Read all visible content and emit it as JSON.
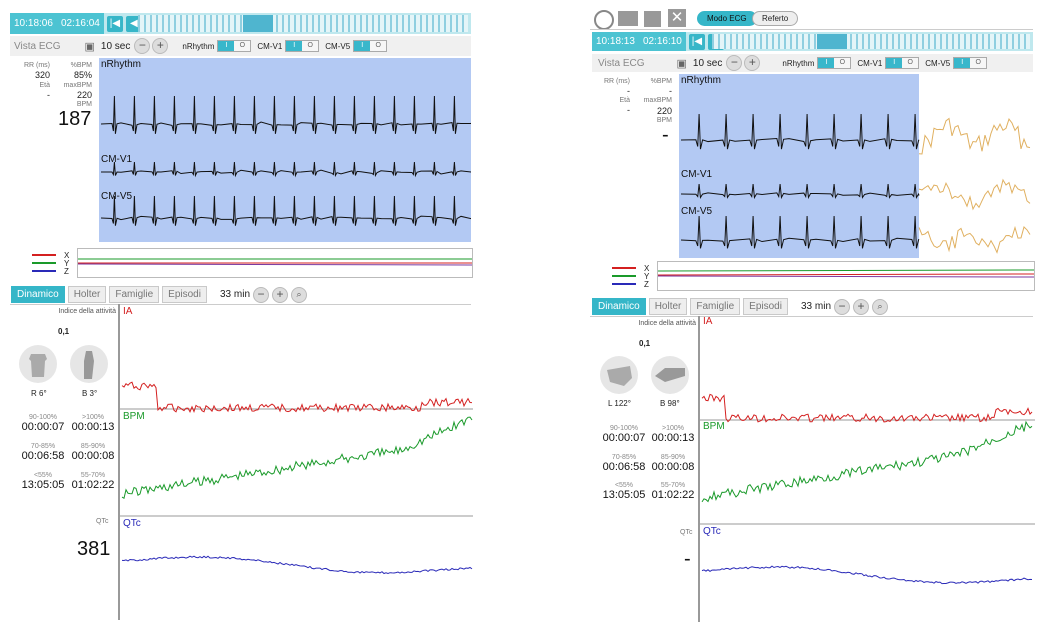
{
  "left": {
    "time1": "10:18:06",
    "time2": "02:16:04",
    "view_label": "Vista ECG",
    "zoom_label": "10 sec",
    "leads": [
      {
        "label": "nRhythm",
        "on": "I",
        "off": "O"
      },
      {
        "label": "CM-V1",
        "on": "I",
        "off": "O"
      },
      {
        "label": "CM-V5",
        "on": "I",
        "off": "O"
      }
    ],
    "rr_label": "RR (ms)",
    "rr_value": "320",
    "pbpm_label": "%BPM",
    "pbpm_value": "85%",
    "eta_label": "Età",
    "eta_value": "-",
    "maxbpm_label": "maxBPM",
    "maxbpm_value": "220",
    "bpm_label": "BPM",
    "bpm_big": "187",
    "trace_labels": [
      "nRhythm",
      "CM-V1",
      "CM-V5"
    ],
    "xyz": [
      "X",
      "Y",
      "Z"
    ],
    "tabs": [
      "Dinamico",
      "Holter",
      "Famiglie",
      "Episodi"
    ],
    "range_label": "33 min",
    "activity_label": "Indice della attività",
    "activity_value": "0,1",
    "pos1": "R 6°",
    "pos2": "B 3°",
    "ia_label": "IA",
    "bpm_graph_label": "BPM",
    "qtc_graph_label": "QTc",
    "qtc_small": "QTc",
    "qtc_big": "381",
    "stats": [
      {
        "label": "90-100%",
        "value": "00:00:07"
      },
      {
        "label": ">100%",
        "value": "00:00:13"
      },
      {
        "label": "70-85%",
        "value": "00:06:58"
      },
      {
        "label": "85-90%",
        "value": "00:00:08"
      },
      {
        "label": "<55%",
        "value": "13:05:05"
      },
      {
        "label": "55-70%",
        "value": "01:02:22"
      }
    ]
  },
  "right": {
    "toolbar_btn1": "Modo ECG",
    "toolbar_btn2": "Referto",
    "time1": "10:18:13",
    "time2": "02:16:10",
    "view_label": "Vista ECG",
    "zoom_label": "10 sec",
    "leads": [
      {
        "label": "nRhythm",
        "on": "I",
        "off": "O"
      },
      {
        "label": "CM-V1",
        "on": "I",
        "off": "O"
      },
      {
        "label": "CM-V5",
        "on": "I",
        "off": "O"
      }
    ],
    "rr_label": "RR (ms)",
    "rr_value": "-",
    "pbpm_label": "%BPM",
    "pbpm_value": "-",
    "eta_label": "Età",
    "eta_value": "-",
    "maxbpm_label": "maxBPM",
    "maxbpm_value": "220",
    "bpm_label": "BPM",
    "bpm_big": "-",
    "trace_labels": [
      "nRhythm",
      "CM-V1",
      "CM-V5"
    ],
    "xyz": [
      "X",
      "Y",
      "Z"
    ],
    "tabs": [
      "Dinamico",
      "Holter",
      "Famiglie",
      "Episodi"
    ],
    "range_label": "33 min",
    "activity_label": "Indice della attività",
    "activity_value": "0,1",
    "pos1": "L 122°",
    "pos2": "B 98°",
    "ia_label": "IA",
    "bpm_graph_label": "BPM",
    "qtc_graph_label": "QTc",
    "qtc_small": "QTc",
    "qtc_big": "-",
    "stats": [
      {
        "label": "90-100%",
        "value": "00:00:07"
      },
      {
        "label": ">100%",
        "value": "00:00:13"
      },
      {
        "label": "70-85%",
        "value": "00:06:58"
      },
      {
        "label": "85-90%",
        "value": "00:00:08"
      },
      {
        "label": "<55%",
        "value": "13:05:05"
      },
      {
        "label": "55-70%",
        "value": "01:02:22"
      }
    ]
  },
  "colors": {
    "accent": "#35b6c8",
    "ecg_bg": "#b3c9f3",
    "ia": "#d42020",
    "bpm": "#1a9a2a",
    "qtc": "#2a2ab8",
    "hidden_trace": "#e0b060"
  }
}
